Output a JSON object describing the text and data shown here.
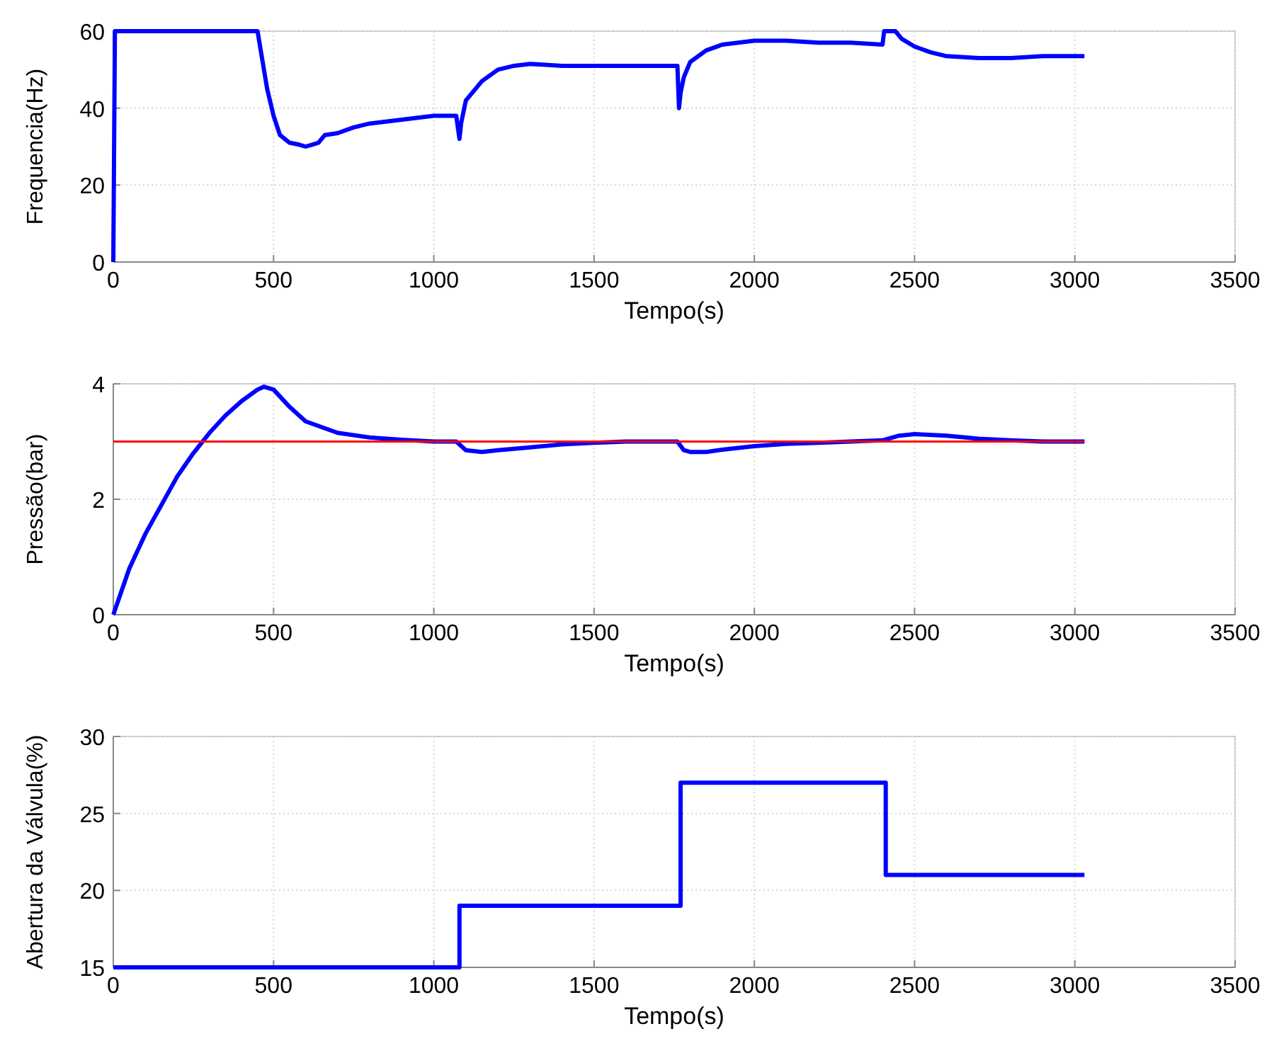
{
  "chart_data": [
    {
      "type": "line",
      "xlabel": "Tempo(s)",
      "ylabel": "Frequencia(Hz)",
      "xlim": [
        0,
        3500
      ],
      "xticks": [
        0,
        500,
        1000,
        1500,
        2000,
        2500,
        3000,
        3500
      ],
      "ylim": [
        0,
        60
      ],
      "yticks": [
        0,
        20,
        40,
        60
      ],
      "grid": true,
      "series": [
        {
          "color": "#0000ff",
          "x": [
            0,
            5,
            10,
            450,
            460,
            480,
            500,
            520,
            550,
            580,
            600,
            620,
            640,
            660,
            700,
            750,
            800,
            900,
            1000,
            1070,
            1080,
            1085,
            1100,
            1150,
            1200,
            1250,
            1300,
            1400,
            1500,
            1600,
            1700,
            1760,
            1765,
            1770,
            1780,
            1800,
            1850,
            1900,
            1950,
            2000,
            2100,
            2200,
            2300,
            2400,
            2405,
            2410,
            2440,
            2460,
            2500,
            2550,
            2600,
            2700,
            2800,
            2900,
            3000,
            3030
          ],
          "values": [
            0,
            60,
            60,
            60,
            55,
            45,
            38,
            33,
            31,
            30.5,
            30,
            30.5,
            31,
            33,
            33.5,
            35,
            36,
            37,
            38,
            38,
            32,
            36,
            42,
            47,
            50,
            51,
            51.5,
            51,
            51,
            51,
            51,
            51,
            40,
            44,
            48,
            52,
            55,
            56.5,
            57,
            57.5,
            57.5,
            57,
            57,
            56.5,
            60,
            60,
            60,
            58,
            56,
            54.5,
            53.5,
            53,
            53,
            53.5,
            53.5,
            53.5
          ]
        }
      ]
    },
    {
      "type": "line",
      "xlabel": "Tempo(s)",
      "ylabel": "Pressão(bar)",
      "xlim": [
        0,
        3500
      ],
      "xticks": [
        0,
        500,
        1000,
        1500,
        2000,
        2500,
        3000,
        3500
      ],
      "ylim": [
        0,
        4
      ],
      "yticks": [
        0,
        2,
        4
      ],
      "grid": true,
      "series": [
        {
          "color": "#0000ff",
          "x": [
            0,
            50,
            100,
            150,
            200,
            250,
            300,
            350,
            400,
            450,
            470,
            500,
            550,
            600,
            700,
            800,
            900,
            1000,
            1070,
            1100,
            1150,
            1200,
            1300,
            1400,
            1500,
            1600,
            1700,
            1760,
            1780,
            1800,
            1850,
            1900,
            2000,
            2100,
            2200,
            2300,
            2400,
            2450,
            2500,
            2600,
            2700,
            2800,
            2900,
            3030
          ],
          "values": [
            0,
            0.8,
            1.4,
            1.9,
            2.4,
            2.8,
            3.15,
            3.45,
            3.7,
            3.9,
            3.95,
            3.9,
            3.6,
            3.35,
            3.15,
            3.07,
            3.03,
            3.0,
            3.0,
            2.85,
            2.82,
            2.85,
            2.9,
            2.95,
            2.98,
            3.0,
            3.0,
            3.0,
            2.85,
            2.82,
            2.82,
            2.86,
            2.92,
            2.96,
            2.98,
            3.0,
            3.02,
            3.1,
            3.13,
            3.1,
            3.05,
            3.02,
            3.0,
            3.0
          ]
        },
        {
          "color": "#ff0000",
          "x": [
            0,
            3030
          ],
          "values": [
            3,
            3
          ]
        }
      ]
    },
    {
      "type": "line",
      "xlabel": "Tempo(s)",
      "ylabel": "Abertura da Válvula(%)",
      "xlim": [
        0,
        3500
      ],
      "xticks": [
        0,
        500,
        1000,
        1500,
        2000,
        2500,
        3000,
        3500
      ],
      "ylim": [
        15,
        30
      ],
      "yticks": [
        15,
        20,
        25,
        30
      ],
      "grid": true,
      "series": [
        {
          "color": "#0000ff",
          "x": [
            0,
            1080,
            1080,
            1770,
            1770,
            2410,
            2410,
            3030
          ],
          "values": [
            15,
            15,
            19,
            19,
            27,
            27,
            21,
            21
          ]
        }
      ]
    }
  ]
}
